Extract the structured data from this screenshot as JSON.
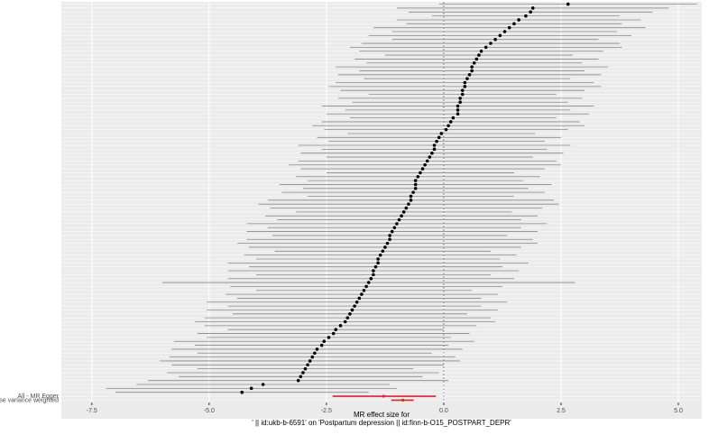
{
  "chart_data": {
    "type": "forest",
    "x_label_lines": [
      "MR effect size for",
      "' || id:ukb-b-6591' on 'Postpartum depression || id:finn-b-O15_POSTPART_DEPR'"
    ],
    "xlim": [
      -8.15,
      5.5
    ],
    "xticks": [
      {
        "value": -7.5,
        "label": "-7.5"
      },
      {
        "value": -5,
        "label": "-5.0"
      },
      {
        "value": -2.5,
        "label": "-2.5"
      },
      {
        "value": 0,
        "label": "0.0"
      },
      {
        "value": 2.5,
        "label": "2.5"
      },
      {
        "value": 5,
        "label": "5.0"
      }
    ],
    "grid": true,
    "reference_line": 0,
    "snp_color": "#000000",
    "categories": [
      null,
      null,
      null,
      null,
      null,
      null,
      null,
      null,
      null,
      null,
      null,
      null,
      null,
      null,
      null,
      null,
      null,
      null,
      null,
      null,
      null,
      null,
      null,
      null,
      null,
      null,
      null,
      null,
      null,
      null,
      null,
      null,
      null,
      null,
      null,
      null,
      null,
      null,
      null,
      null,
      null,
      null,
      null,
      null,
      null,
      null,
      null,
      null,
      null,
      null,
      null,
      null,
      null,
      null,
      null,
      null,
      null,
      null,
      null,
      null,
      null,
      null,
      null,
      null,
      null,
      null,
      null,
      null,
      null,
      null,
      null,
      null,
      null,
      null,
      null,
      null,
      null,
      null,
      null,
      null,
      null,
      null,
      null,
      null,
      null,
      null,
      null,
      null,
      null,
      null,
      null,
      null,
      null,
      null,
      null,
      null,
      null,
      null,
      null,
      null
    ],
    "values": [
      2.65,
      1.9,
      1.85,
      1.75,
      1.6,
      1.5,
      1.4,
      1.3,
      1.2,
      1.1,
      1.0,
      0.9,
      0.8,
      0.75,
      0.7,
      0.65,
      0.6,
      0.6,
      0.55,
      0.5,
      0.45,
      0.45,
      0.4,
      0.4,
      0.35,
      0.35,
      0.3,
      0.3,
      0.3,
      0.2,
      0.15,
      0.1,
      0.05,
      -0.05,
      -0.1,
      -0.15,
      -0.2,
      -0.2,
      -0.25,
      -0.3,
      -0.35,
      -0.4,
      -0.45,
      -0.5,
      -0.55,
      -0.6,
      -0.6,
      -0.6,
      -0.65,
      -0.7,
      -0.7,
      -0.75,
      -0.8,
      -0.85,
      -0.9,
      -0.95,
      -1.0,
      -1.05,
      -1.1,
      -1.15,
      -1.15,
      -1.2,
      -1.25,
      -1.3,
      -1.35,
      -1.4,
      -1.4,
      -1.45,
      -1.5,
      -1.5,
      -1.55,
      -1.6,
      -1.65,
      -1.7,
      -1.75,
      -1.8,
      -1.85,
      -1.9,
      -1.95,
      -2.0,
      -2.05,
      -2.1,
      -2.2,
      -2.3,
      -2.35,
      -2.45,
      -2.55,
      -2.6,
      -2.7,
      -2.75,
      -2.8,
      -2.85,
      -2.9,
      -2.95,
      -3.0,
      -3.05,
      -3.1,
      -3.85,
      -4.1,
      -4.3
    ],
    "lower": [
      -0.1,
      -1.0,
      -0.75,
      -0.25,
      -1.0,
      -0.8,
      -1.5,
      -1.1,
      -1.6,
      -1.1,
      -1.75,
      -2.0,
      -1.8,
      -1.25,
      -1.9,
      -1.65,
      -2.3,
      -1.8,
      -2.25,
      -1.7,
      -2.3,
      -2.45,
      -2.2,
      -1.6,
      -2.25,
      -1.95,
      -2.6,
      -2.1,
      -2.5,
      -2.0,
      -2.6,
      -2.8,
      -2.55,
      -2.05,
      -2.7,
      -2.45,
      -3.1,
      -2.6,
      -3.05,
      -2.5,
      -3.1,
      -3.3,
      -3.05,
      -2.5,
      -3.15,
      -2.9,
      -3.5,
      -3.0,
      -3.45,
      -2.9,
      -3.75,
      -3.95,
      -3.7,
      -3.15,
      -3.8,
      -3.55,
      -4.2,
      -3.75,
      -4.2,
      -3.65,
      -4.2,
      -4.4,
      -4.15,
      -3.6,
      -4.25,
      -4.0,
      -4.6,
      -4.15,
      -4.6,
      -4.0,
      -4.6,
      -6.0,
      -4.55,
      -4.0,
      -4.65,
      -4.4,
      -5.05,
      -4.6,
      -5.05,
      -4.5,
      -5.1,
      -5.3,
      -5.1,
      -4.6,
      -5.25,
      -5.05,
      -5.75,
      -5.3,
      -5.8,
      -5.25,
      -5.85,
      -6.05,
      -5.8,
      -5.25,
      -5.9,
      -5.65,
      -6.3,
      -6.55,
      -7.2,
      -7.0
    ],
    "upper": [
      5.4,
      4.8,
      4.45,
      3.75,
      4.2,
      3.8,
      4.3,
      3.7,
      4.0,
      3.3,
      3.75,
      3.8,
      3.4,
      2.75,
      3.3,
      2.95,
      3.5,
      3.0,
      3.35,
      2.7,
      3.2,
      3.35,
      3.0,
      2.4,
      2.95,
      2.65,
      3.2,
      2.7,
      3.1,
      2.4,
      2.9,
      3.0,
      2.65,
      1.95,
      2.5,
      2.15,
      2.7,
      2.2,
      2.55,
      1.9,
      2.4,
      2.5,
      2.15,
      1.5,
      2.05,
      1.7,
      2.3,
      1.8,
      2.15,
      1.5,
      2.35,
      2.45,
      2.1,
      1.45,
      2.0,
      1.65,
      2.2,
      1.65,
      2.0,
      1.35,
      1.9,
      2.0,
      1.65,
      1.0,
      1.55,
      1.2,
      1.8,
      1.25,
      1.6,
      1.0,
      1.5,
      2.8,
      1.25,
      0.6,
      1.15,
      0.8,
      1.35,
      0.8,
      1.15,
      0.5,
      1.0,
      1.1,
      0.7,
      0.0,
      0.55,
      0.15,
      0.65,
      0.1,
      0.4,
      -0.25,
      0.25,
      0.35,
      0.0,
      -0.65,
      -0.1,
      -0.45,
      0.1,
      -1.15,
      -1.0,
      -1.6
    ],
    "summary": {
      "color": "#e8201f",
      "categories": [
        "All - MR Egger",
        "All - Inverse variance weighted"
      ],
      "values": [
        -1.28,
        -0.87
      ],
      "lower": [
        -2.37,
        -1.12
      ],
      "upper": [
        -0.17,
        -0.64
      ]
    }
  }
}
